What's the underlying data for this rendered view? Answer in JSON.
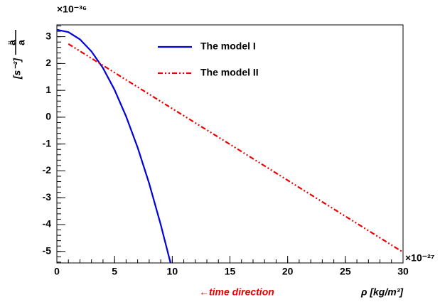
{
  "chart_data": {
    "type": "line",
    "y_label": {
      "numerator": "ä",
      "denominator": "a",
      "unit": "[s⁻²]"
    },
    "y_exponent": "×10⁻³⁶",
    "x_exponent": "×10⁻²⁷",
    "x_label": "ρ  [kg/m³]",
    "annotation": "←time direction",
    "series": [
      {
        "name": "The model I",
        "color": "#0000dd",
        "style": "solid",
        "x": [
          0,
          1,
          2,
          3,
          4,
          5,
          6,
          7,
          8,
          9,
          9.85
        ],
        "values": [
          3.26,
          3.17,
          2.9,
          2.45,
          1.83,
          1.02,
          0.03,
          -1.13,
          -2.47,
          -4.0,
          -5.43
        ]
      },
      {
        "name": "The model II",
        "color": "#ee0000",
        "style": "dashdot",
        "x": [
          1,
          5,
          10,
          15,
          20,
          25,
          30
        ],
        "values": [
          2.73,
          1.66,
          0.32,
          -1.01,
          -2.35,
          -3.69,
          -5.03
        ]
      }
    ],
    "xlim": [
      0,
      30
    ],
    "xticks": [
      0,
      5,
      10,
      15,
      20,
      25,
      30
    ],
    "ylim": [
      -5.43,
      3.44
    ],
    "yticks": [
      -5,
      -4,
      -3,
      -2,
      -1,
      0,
      1,
      2,
      3
    ]
  }
}
